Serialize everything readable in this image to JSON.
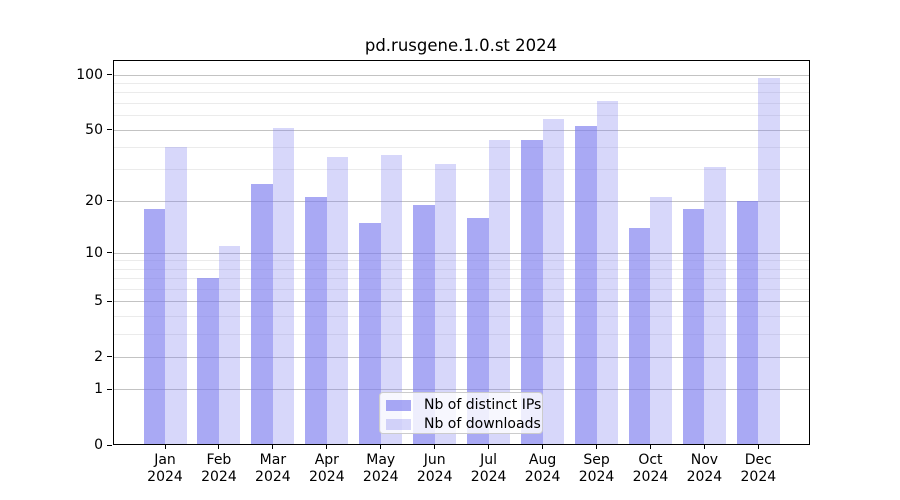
{
  "chart_data": {
    "type": "bar",
    "title": "pd.rusgene.1.0.st 2024",
    "x_categories_month": [
      "Jan",
      "Feb",
      "Mar",
      "Apr",
      "May",
      "Jun",
      "Jul",
      "Aug",
      "Sep",
      "Oct",
      "Nov",
      "Dec"
    ],
    "x_categories_year": "2024",
    "series": [
      {
        "name": "Nb of distinct IPs",
        "values": [
          18,
          7,
          25,
          21,
          15,
          19,
          16,
          44,
          52,
          14,
          18,
          20
        ],
        "color": "rgba(123,123,238,0.65)"
      },
      {
        "name": "Nb of downloads",
        "values": [
          40,
          11,
          51,
          35,
          36,
          32,
          44,
          57,
          72,
          21,
          31,
          96
        ],
        "color": "rgba(123,123,238,0.30)"
      }
    ],
    "y_scale": "log1p",
    "y_tick_values": [
      0,
      1,
      2,
      5,
      10,
      20,
      50,
      100
    ],
    "y_minor_gridline_values": [
      3,
      4,
      6,
      7,
      8,
      9,
      30,
      40,
      60,
      70,
      80,
      90
    ],
    "ylim": [
      0,
      120
    ],
    "xlabel": "",
    "ylabel": "",
    "grid": true,
    "legend_position": "lower-center-inside"
  }
}
